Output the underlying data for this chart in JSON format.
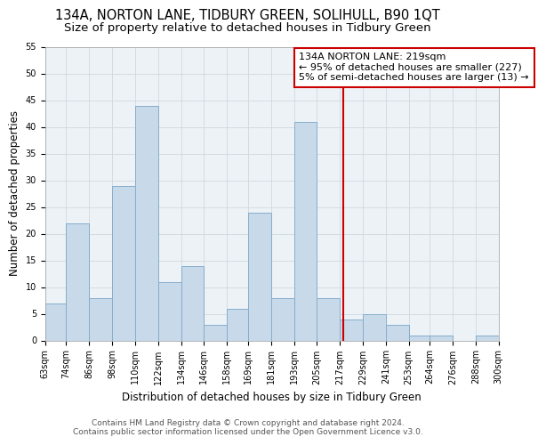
{
  "title": "134A, NORTON LANE, TIDBURY GREEN, SOLIHULL, B90 1QT",
  "subtitle": "Size of property relative to detached houses in Tidbury Green",
  "xlabel": "Distribution of detached houses by size in Tidbury Green",
  "ylabel": "Number of detached properties",
  "bin_edges": [
    63,
    74,
    86,
    98,
    110,
    122,
    134,
    146,
    158,
    169,
    181,
    193,
    205,
    217,
    229,
    241,
    253,
    264,
    276,
    288,
    300
  ],
  "counts": [
    7,
    22,
    8,
    29,
    44,
    11,
    14,
    3,
    6,
    24,
    8,
    41,
    8,
    4,
    5,
    3,
    1,
    1,
    0,
    1
  ],
  "tick_labels": [
    "63sqm",
    "74sqm",
    "86sqm",
    "98sqm",
    "110sqm",
    "122sqm",
    "134sqm",
    "146sqm",
    "158sqm",
    "169sqm",
    "181sqm",
    "193sqm",
    "205sqm",
    "217sqm",
    "229sqm",
    "241sqm",
    "253sqm",
    "264sqm",
    "276sqm",
    "288sqm",
    "300sqm"
  ],
  "bar_color": "#c8d9ea",
  "bar_edgecolor": "#85aecb",
  "grid_color": "#d0d8e0",
  "bg_color": "#edf2f7",
  "vline_x": 219,
  "vline_color": "#cc0000",
  "annotation_line1": "134A NORTON LANE: 219sqm",
  "annotation_line2": "← 95% of detached houses are smaller (227)",
  "annotation_line3": "5% of semi-detached houses are larger (13) →",
  "annotation_edgecolor": "#cc0000",
  "ylim": [
    0,
    55
  ],
  "yticks": [
    0,
    5,
    10,
    15,
    20,
    25,
    30,
    35,
    40,
    45,
    50,
    55
  ],
  "footer_line1": "Contains HM Land Registry data © Crown copyright and database right 2024.",
  "footer_line2": "Contains public sector information licensed under the Open Government Licence v3.0.",
  "title_fontsize": 10.5,
  "subtitle_fontsize": 9.5,
  "axis_label_fontsize": 8.5,
  "tick_fontsize": 7,
  "annotation_fontsize": 8,
  "footer_fontsize": 6.5
}
